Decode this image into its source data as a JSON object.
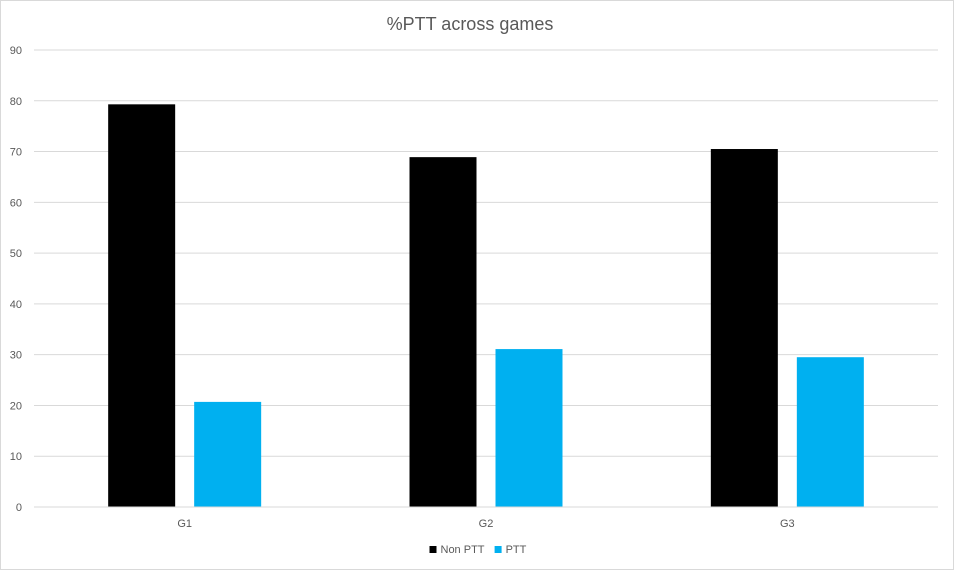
{
  "chart_data": {
    "type": "bar",
    "title": "%PTT across games",
    "xlabel": "",
    "ylabel": "",
    "categories": [
      "G1",
      "G2",
      "G3"
    ],
    "series": [
      {
        "name": "Non PTT",
        "color": "#000000",
        "values": [
          79.3,
          68.9,
          70.5
        ]
      },
      {
        "name": "PTT",
        "color": "#00b0f0",
        "values": [
          20.7,
          31.1,
          29.5
        ]
      }
    ],
    "ylim": [
      0,
      90
    ],
    "yticks": [
      0,
      10,
      20,
      30,
      40,
      50,
      60,
      70,
      80,
      90
    ],
    "grid": true,
    "legend": "bottom-center"
  }
}
